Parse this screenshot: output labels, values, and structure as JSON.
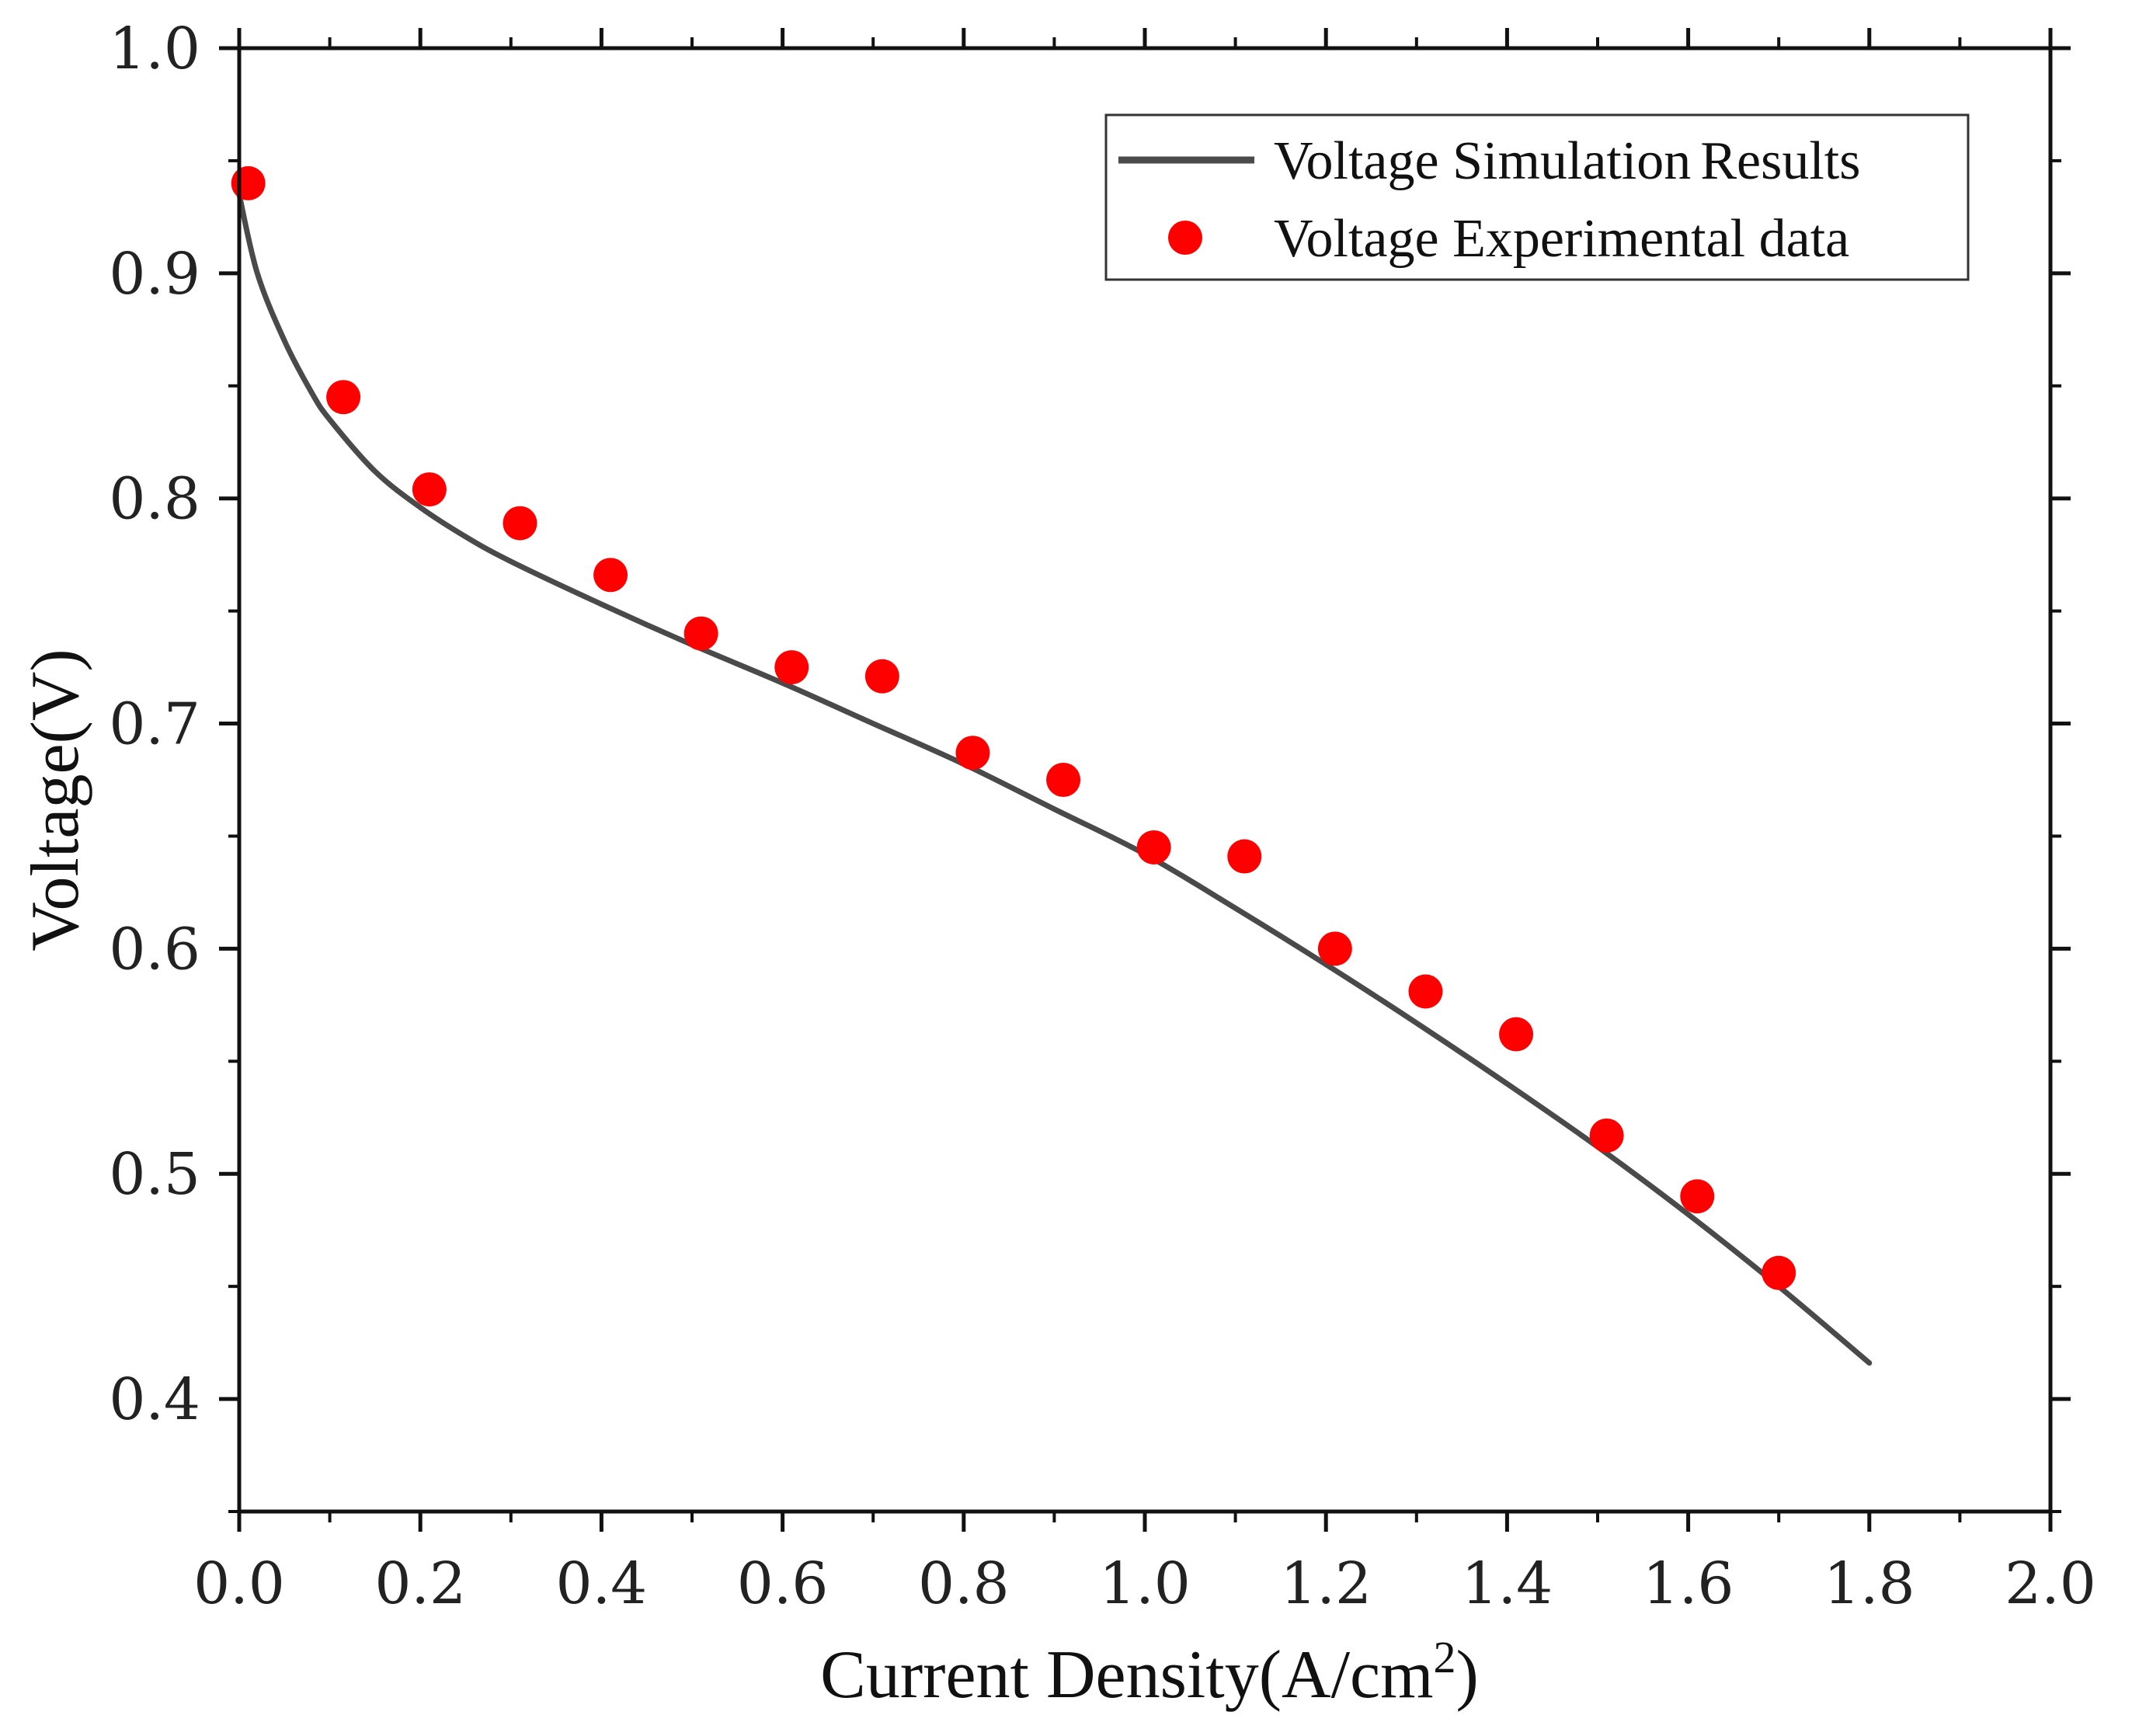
{
  "chart_data": {
    "type": "line+scatter",
    "xlabel_main": "Current Density(A/cm",
    "xlabel_sup": "2",
    "xlabel_end": ")",
    "ylabel": "Voltage(V)",
    "xlim": [
      0.0,
      2.0
    ],
    "ylim": [
      0.35,
      1.0
    ],
    "x_ticks": [
      0.0,
      0.2,
      0.4,
      0.6,
      0.8,
      1.0,
      1.2,
      1.4,
      1.6,
      1.8,
      2.0
    ],
    "x_tick_labels": [
      "0.0",
      "0.2",
      "0.4",
      "0.6",
      "0.8",
      "1.0",
      "1.2",
      "1.4",
      "1.6",
      "1.8",
      "2.0"
    ],
    "y_ticks": [
      0.4,
      0.5,
      0.6,
      0.7,
      0.8,
      0.9,
      1.0
    ],
    "y_tick_labels": [
      "0.4",
      "0.5",
      "0.6",
      "0.7",
      "0.8",
      "0.9",
      "1.0"
    ],
    "legend_position": "top-right",
    "series": [
      {
        "name": "Voltage Simulation Results",
        "kind": "line",
        "color": "#4a4a4a",
        "x": [
          0.0,
          0.02,
          0.05,
          0.08,
          0.1,
          0.15,
          0.2,
          0.25,
          0.3,
          0.4,
          0.5,
          0.6,
          0.7,
          0.8,
          0.9,
          1.0,
          1.1,
          1.2,
          1.3,
          1.4,
          1.5,
          1.6,
          1.7,
          1.8
        ],
        "values": [
          0.935,
          0.9,
          0.87,
          0.847,
          0.835,
          0.812,
          0.796,
          0.783,
          0.772,
          0.753,
          0.735,
          0.718,
          0.7,
          0.682,
          0.662,
          0.642,
          0.618,
          0.593,
          0.567,
          0.54,
          0.512,
          0.482,
          0.45,
          0.416
        ]
      },
      {
        "name": "Voltage Experimental data",
        "kind": "scatter",
        "color": "#ff0000",
        "x": [
          0.01,
          0.115,
          0.21,
          0.31,
          0.41,
          0.51,
          0.61,
          0.71,
          0.81,
          0.91,
          1.01,
          1.11,
          1.21,
          1.31,
          1.41,
          1.51,
          1.61,
          1.7
        ],
        "values": [
          0.94,
          0.845,
          0.804,
          0.789,
          0.766,
          0.74,
          0.725,
          0.721,
          0.687,
          0.675,
          0.645,
          0.641,
          0.6,
          0.581,
          0.562,
          0.517,
          0.49,
          0.456
        ]
      }
    ],
    "legend_labels": {
      "line_part1": "Voltage Simulation",
      "line_part2": "Results",
      "scatter": "Voltage Experimental data"
    }
  }
}
